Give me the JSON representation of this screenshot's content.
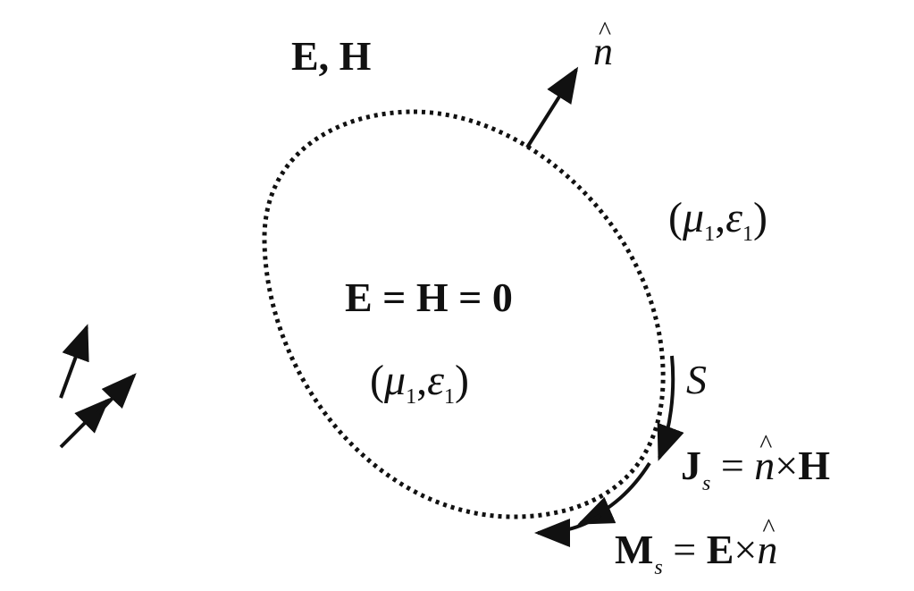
{
  "labels": {
    "outside_fields": "E, H",
    "normal": "n",
    "outer_medium": {
      "mu": "μ",
      "mu_sub": "1",
      "eps": "ε",
      "eps_sub": "1"
    },
    "inside_fields": "E = H = 0",
    "inner_medium": {
      "mu": "μ",
      "mu_sub": "1",
      "eps": "ε",
      "eps_sub": "1"
    },
    "surface": "S",
    "js": {
      "sym": "J",
      "sub": "s",
      "eq": "=",
      "n": "n",
      "times": "×",
      "field": "H"
    },
    "ms": {
      "sym": "M",
      "sub": "s",
      "eq": "=",
      "field": "E",
      "times": "×",
      "n": "n"
    }
  }
}
